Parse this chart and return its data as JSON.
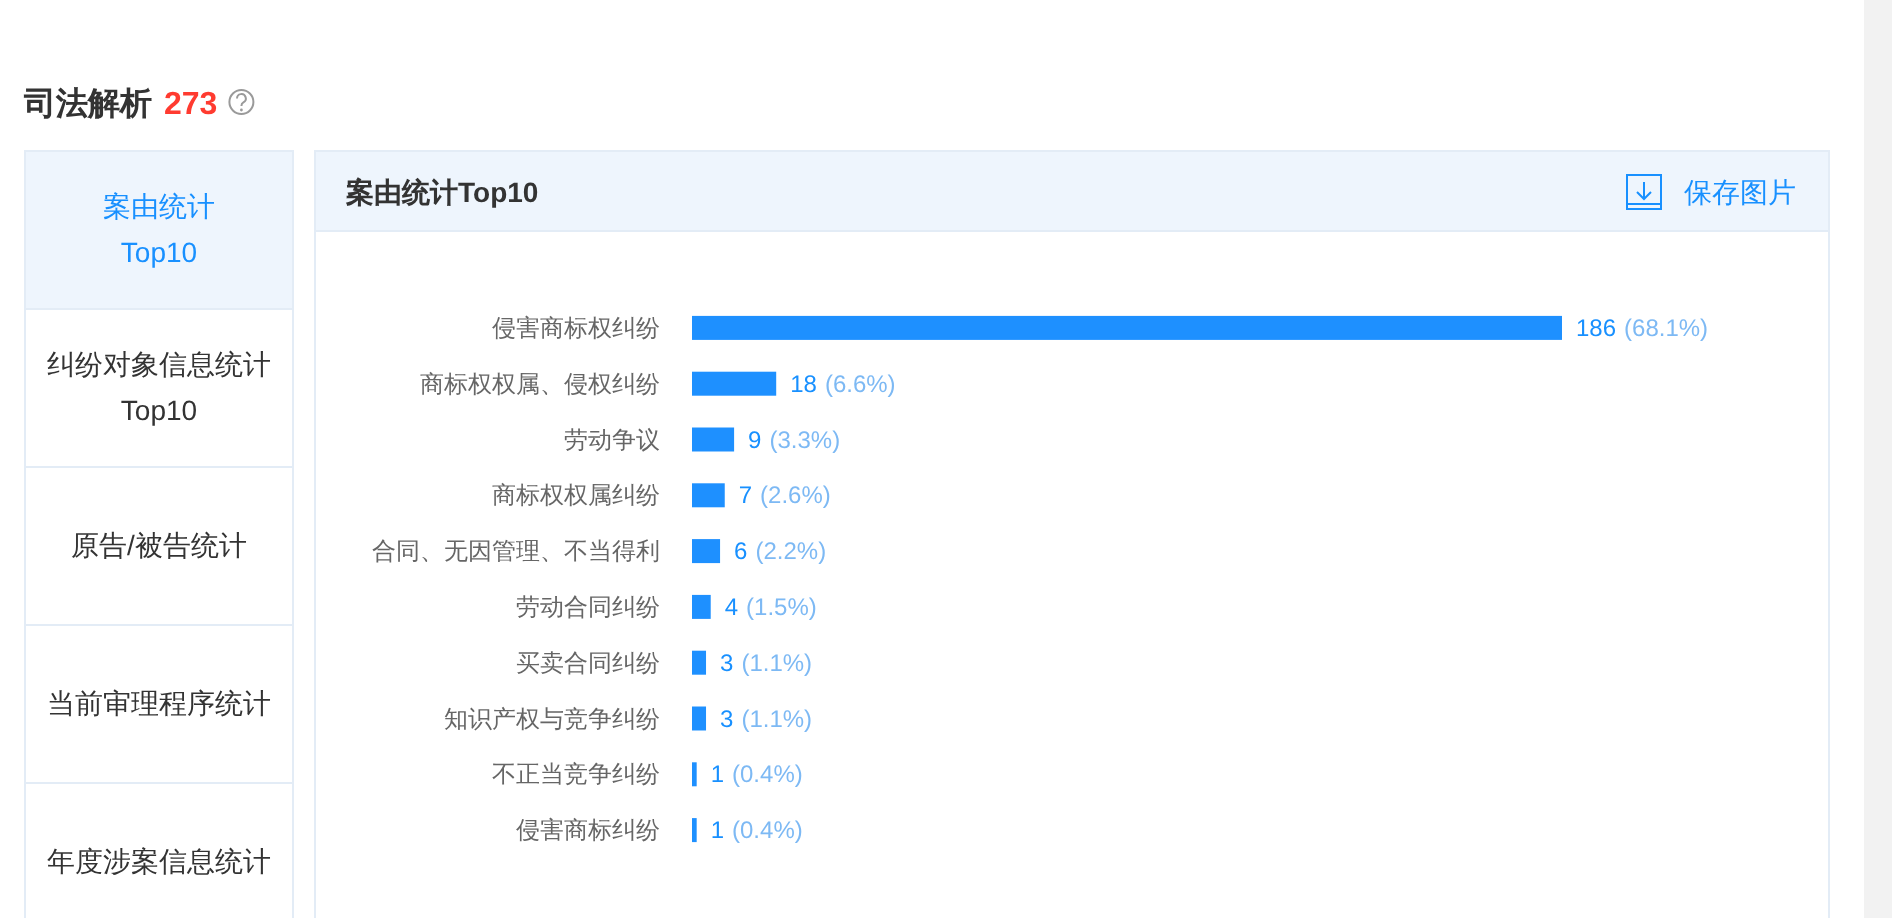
{
  "chart_data": {
    "type": "bar",
    "orientation": "horizontal",
    "title": "案由统计Top10",
    "categories": [
      "侵害商标权纠纷",
      "商标权权属、侵权纠纷",
      "劳动争议",
      "商标权权属纠纷",
      "合同、无因管理、不当得利",
      "劳动合同纠纷",
      "买卖合同纠纷",
      "知识产权与竞争纠纷",
      "不正当竞争纠纷",
      "侵害商标纠纷"
    ],
    "values": [
      186,
      18,
      9,
      7,
      6,
      4,
      3,
      3,
      1,
      1
    ],
    "color": "#1e90ff",
    "value_labels": [
      "186 (68.1%)",
      "18 (6.6%)",
      "9 (3.3%)",
      "7 (2.6%)",
      "6 (2.2%)",
      "4 (1.5%)",
      "3 (1.1%)",
      "3 (1.1%)",
      "1 (0.4%)",
      "1 (0.4%)"
    ],
    "annotations": [
      "司法解析",
      "273",
      "案由统计 Top10",
      "纠纷对象信息统计 Top10",
      "原告/被告统计",
      "当前审理程序统计",
      "年度涉案信息统计",
      "保存图片"
    ]
  }
}
